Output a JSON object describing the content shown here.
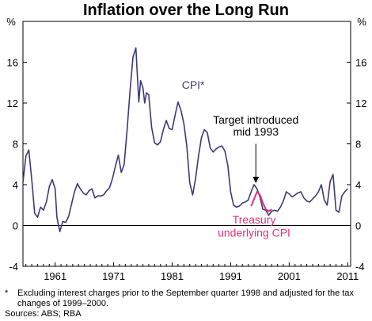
{
  "chart_data": {
    "type": "line",
    "title": "Inflation over the Long Run",
    "ylabel_left": "%",
    "ylabel_right": "%",
    "ylim": [
      -4,
      20
    ],
    "yticks": [
      -4,
      0,
      4,
      8,
      12,
      16
    ],
    "xlim": [
      1955.5,
      2011.5
    ],
    "xticks": [
      1961,
      1971,
      1981,
      1991,
      2001,
      2011
    ],
    "series": [
      {
        "name": "CPI*",
        "color": "#3b3a78",
        "x": [
          1955.5,
          1956.0,
          1956.5,
          1957.0,
          1957.5,
          1958.0,
          1958.5,
          1959.0,
          1959.5,
          1960.0,
          1960.5,
          1961.0,
          1961.3,
          1961.8,
          1962.3,
          1962.8,
          1963.3,
          1963.8,
          1964.3,
          1964.8,
          1965.3,
          1965.8,
          1966.3,
          1966.8,
          1967.3,
          1967.8,
          1968.3,
          1968.8,
          1969.3,
          1969.8,
          1970.3,
          1970.8,
          1971.3,
          1971.8,
          1972.3,
          1972.8,
          1973.3,
          1973.8,
          1974.3,
          1974.8,
          1975.0,
          1975.3,
          1975.6,
          1976.0,
          1976.3,
          1976.6,
          1977.0,
          1977.5,
          1978.0,
          1978.5,
          1979.0,
          1979.5,
          1980.0,
          1980.5,
          1981.0,
          1981.5,
          1982.0,
          1982.5,
          1983.0,
          1983.5,
          1984.0,
          1984.5,
          1985.0,
          1985.5,
          1986.0,
          1986.5,
          1987.0,
          1987.5,
          1988.0,
          1988.5,
          1989.0,
          1989.5,
          1990.0,
          1990.5,
          1991.0,
          1991.5,
          1992.0,
          1992.5,
          1993.0,
          1993.5,
          1994.0,
          1994.5,
          1995.0,
          1995.5,
          1996.0,
          1996.5,
          1997.0,
          1997.5,
          1998.0,
          1998.5,
          1999.0,
          1999.5,
          2000.0,
          2000.5,
          2001.0,
          2001.5,
          2002.0,
          2002.5,
          2003.0,
          2003.5,
          2004.0,
          2004.5,
          2005.0,
          2005.5,
          2006.0,
          2006.5,
          2007.0,
          2007.5,
          2008.0,
          2008.5,
          2009.0,
          2009.5,
          2010.0,
          2010.5,
          2011.0
        ],
        "y": [
          4.2,
          6.8,
          7.4,
          4.5,
          1.2,
          0.8,
          1.8,
          1.5,
          2.3,
          3.8,
          4.5,
          3.6,
          0.8,
          -0.6,
          0.4,
          0.3,
          0.9,
          2.1,
          3.3,
          4.1,
          3.6,
          3.2,
          3.0,
          3.4,
          3.6,
          2.7,
          2.9,
          2.9,
          3.0,
          3.4,
          3.7,
          4.6,
          5.8,
          6.9,
          5.2,
          6.0,
          9.4,
          13.2,
          16.5,
          17.4,
          15.2,
          12.1,
          14.2,
          13.5,
          12.0,
          13.0,
          12.8,
          9.6,
          8.1,
          7.9,
          8.2,
          9.4,
          10.3,
          9.5,
          9.4,
          10.8,
          12.1,
          11.3,
          10.0,
          7.8,
          4.2,
          3.0,
          4.6,
          6.8,
          8.6,
          9.4,
          9.1,
          7.6,
          7.2,
          7.5,
          7.7,
          7.8,
          7.3,
          5.9,
          3.3,
          2.0,
          1.8,
          1.9,
          2.2,
          2.3,
          2.5,
          3.3,
          4.0,
          3.6,
          2.8,
          1.6,
          1.5,
          1.0,
          1.4,
          1.5,
          1.4,
          1.8,
          2.4,
          3.3,
          3.1,
          2.8,
          3.0,
          3.2,
          3.3,
          2.7,
          2.4,
          2.3,
          2.6,
          2.9,
          3.3,
          4.0,
          2.5,
          2.0,
          4.3,
          5.0,
          1.5,
          1.3,
          2.9,
          3.3,
          3.6
        ]
      },
      {
        "name": "Treasury underlying CPI",
        "color": "#e0307a",
        "x": [
          1994.5,
          1995.0,
          1995.5,
          1996.0,
          1996.5,
          1997.0,
          1997.5,
          1998.0
        ],
        "y": [
          1.9,
          2.6,
          3.3,
          3.0,
          2.2,
          1.6,
          1.4,
          1.6
        ]
      }
    ],
    "annotations": [
      {
        "text": "CPI*"
      },
      {
        "text_line1": "Target introduced",
        "text_line2": "mid 1993",
        "arrow_x": 1995.3,
        "arrow_y": 4.0
      },
      {
        "text_line1": "Treasury",
        "text_line2": "underlying CPI"
      }
    ],
    "grid": false,
    "legend": "none"
  },
  "footnote": {
    "marker": "*",
    "text": "Excluding interest charges prior to the September quarter 1998 and adjusted for the tax changes of 1999–2000.",
    "sources": "Sources: ABS; RBA"
  }
}
